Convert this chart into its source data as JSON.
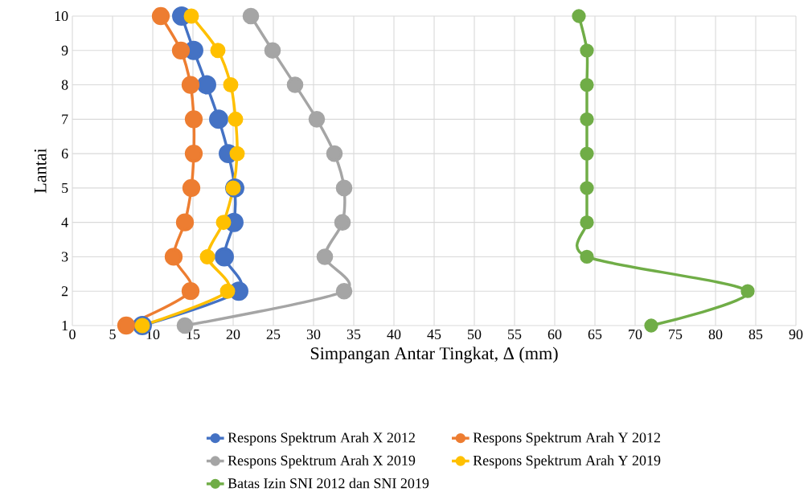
{
  "chart_data": {
    "type": "line",
    "xlabel": "Simpangan Antar Tingkat, Δ (mm)",
    "ylabel": "Lantai",
    "xlim": [
      0,
      90
    ],
    "xticks": [
      0,
      5,
      10,
      15,
      20,
      25,
      30,
      35,
      40,
      45,
      50,
      55,
      60,
      65,
      70,
      75,
      80,
      85,
      90
    ],
    "ylim": [
      1,
      10
    ],
    "yticks": [
      1,
      2,
      3,
      4,
      5,
      6,
      7,
      8,
      9,
      10
    ],
    "grid": true,
    "legend": "bottom",
    "marker": "circle",
    "line_style": "solid",
    "series": [
      {
        "name": "Respons Spektrum Arah X 2012",
        "color": "#4472c4",
        "x": [
          8.7,
          20.7,
          18.9,
          20.1,
          20.2,
          19.4,
          18.2,
          16.7,
          15.1,
          13.6
        ],
        "values": [
          1,
          2,
          3,
          4,
          5,
          6,
          7,
          8,
          9,
          10
        ]
      },
      {
        "name": "Respons Spektrum Arah Y 2012",
        "color": "#ed7d31",
        "x": [
          6.7,
          14.7,
          12.6,
          14.0,
          14.8,
          15.1,
          15.1,
          14.7,
          13.5,
          11.0
        ],
        "values": [
          1,
          2,
          3,
          4,
          5,
          6,
          7,
          8,
          9,
          10
        ]
      },
      {
        "name": "Respons Spektrum Arah X 2019",
        "color": "#a5a5a5",
        "x": [
          14.0,
          33.8,
          31.4,
          33.6,
          33.8,
          32.6,
          30.4,
          27.7,
          24.9,
          22.2
        ],
        "values": [
          1,
          2,
          3,
          4,
          5,
          6,
          7,
          8,
          9,
          10
        ]
      },
      {
        "name": "Respons Spektrum Arah Y 2019",
        "color": "#ffc000",
        "x": [
          8.7,
          19.3,
          16.8,
          18.8,
          20.0,
          20.5,
          20.3,
          19.7,
          18.1,
          14.8
        ],
        "values": [
          1,
          2,
          3,
          4,
          5,
          6,
          7,
          8,
          9,
          10
        ]
      },
      {
        "name": "Batas Izin SNI 2012 dan SNI 2019",
        "color": "#70ad47",
        "x": [
          72,
          84,
          64,
          64,
          64,
          64,
          64,
          64,
          64,
          63
        ],
        "values": [
          1,
          2,
          3,
          4,
          5,
          6,
          7,
          8,
          9,
          10
        ]
      }
    ]
  }
}
